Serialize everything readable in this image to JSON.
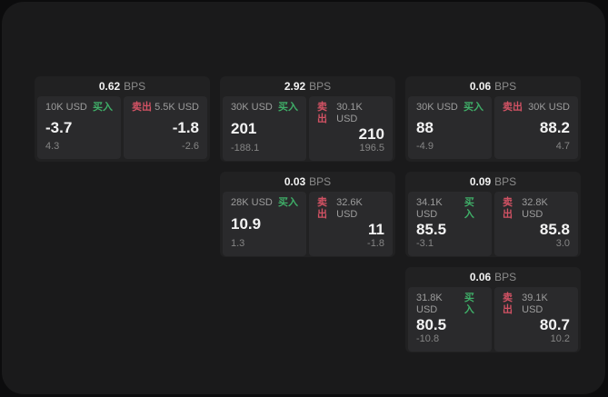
{
  "window": {
    "background": "#0c0c0d",
    "panel_background": "#1a1a1b"
  },
  "labels": {
    "bps_unit": "BPS",
    "buy": "买入",
    "sell": "卖出"
  },
  "colors": {
    "buy_green": "#3fae68",
    "sell_red": "#d25264",
    "card_background": "#212122",
    "tile_background": "#2a2a2c",
    "value_text": "#f3f3f3",
    "muted_text": "#9c9c9c"
  },
  "cards": [
    {
      "bps_value": "0.62",
      "buy": {
        "amount": "10K USD",
        "price": "-3.7",
        "delta": "4.3"
      },
      "sell": {
        "amount": "5.5K USD",
        "price": "-1.8",
        "delta": "-2.6"
      }
    },
    {
      "bps_value": "2.92",
      "buy": {
        "amount": "30K USD",
        "price": "201",
        "delta": "-188.1"
      },
      "sell": {
        "amount": "30.1K USD",
        "price": "210",
        "delta": "196.5"
      }
    },
    {
      "bps_value": "0.06",
      "buy": {
        "amount": "30K USD",
        "price": "88",
        "delta": "-4.9"
      },
      "sell": {
        "amount": "30K USD",
        "price": "88.2",
        "delta": "4.7"
      }
    },
    {
      "bps_value": "0.03",
      "buy": {
        "amount": "28K USD",
        "price": "10.9",
        "delta": "1.3"
      },
      "sell": {
        "amount": "32.6K USD",
        "price": "11",
        "delta": "-1.8"
      }
    },
    {
      "bps_value": "0.09",
      "buy": {
        "amount": "34.1K USD",
        "price": "85.5",
        "delta": "-3.1"
      },
      "sell": {
        "amount": "32.8K USD",
        "price": "85.8",
        "delta": "3.0"
      }
    },
    {
      "bps_value": "0.06",
      "buy": {
        "amount": "31.8K USD",
        "price": "80.5",
        "delta": "-10.8"
      },
      "sell": {
        "amount": "39.1K USD",
        "price": "80.7",
        "delta": "10.2"
      }
    }
  ]
}
